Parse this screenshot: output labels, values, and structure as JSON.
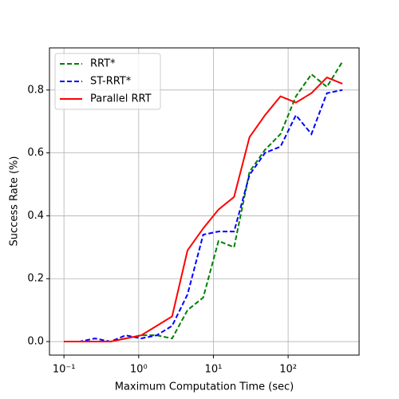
{
  "chart_data": {
    "type": "line",
    "xlabel": "Maximum Computation Time (sec)",
    "ylabel": "Success Rate (%)",
    "x": [
      0.1,
      0.161,
      0.26,
      0.42,
      0.67,
      1.08,
      1.74,
      2.8,
      4.5,
      7.3,
      11.7,
      18.9,
      30.4,
      49,
      79,
      127,
      205,
      330,
      532
    ],
    "series": [
      {
        "name": "RRT*",
        "color": "#008000",
        "dash": true,
        "values": [
          0,
          0,
          0,
          0,
          0.01,
          0.02,
          0.02,
          0.01,
          0.1,
          0.14,
          0.32,
          0.3,
          0.54,
          0.61,
          0.66,
          0.78,
          0.85,
          0.81,
          0.89
        ]
      },
      {
        "name": "ST-RRT*",
        "color": "#0000ff",
        "dash": true,
        "values": [
          0,
          0,
          0.01,
          0,
          0.02,
          0.01,
          0.02,
          0.05,
          0.15,
          0.34,
          0.35,
          0.35,
          0.53,
          0.6,
          0.62,
          0.72,
          0.66,
          0.79,
          0.8
        ]
      },
      {
        "name": "Parallel RRT",
        "color": "#ff0000",
        "dash": false,
        "values": [
          0,
          0,
          0,
          0,
          0.01,
          0.02,
          0.05,
          0.08,
          0.29,
          0.36,
          0.42,
          0.46,
          0.65,
          0.72,
          0.78,
          0.76,
          0.79,
          0.84,
          0.82
        ]
      }
    ],
    "xscale": "log",
    "xlim": [
      0.064,
      890
    ],
    "xticks": [
      {
        "value": 0.1,
        "label": "10⁻¹"
      },
      {
        "value": 1,
        "label": "10⁰"
      },
      {
        "value": 10,
        "label": "10¹"
      },
      {
        "value": 100,
        "label": "10²"
      }
    ],
    "ylim": [
      -0.043,
      0.934
    ],
    "yticks": [
      {
        "value": 0,
        "label": "0.0"
      },
      0.2,
      0.4,
      0.6,
      0.8
    ],
    "grid": true,
    "legend": "upper left"
  }
}
